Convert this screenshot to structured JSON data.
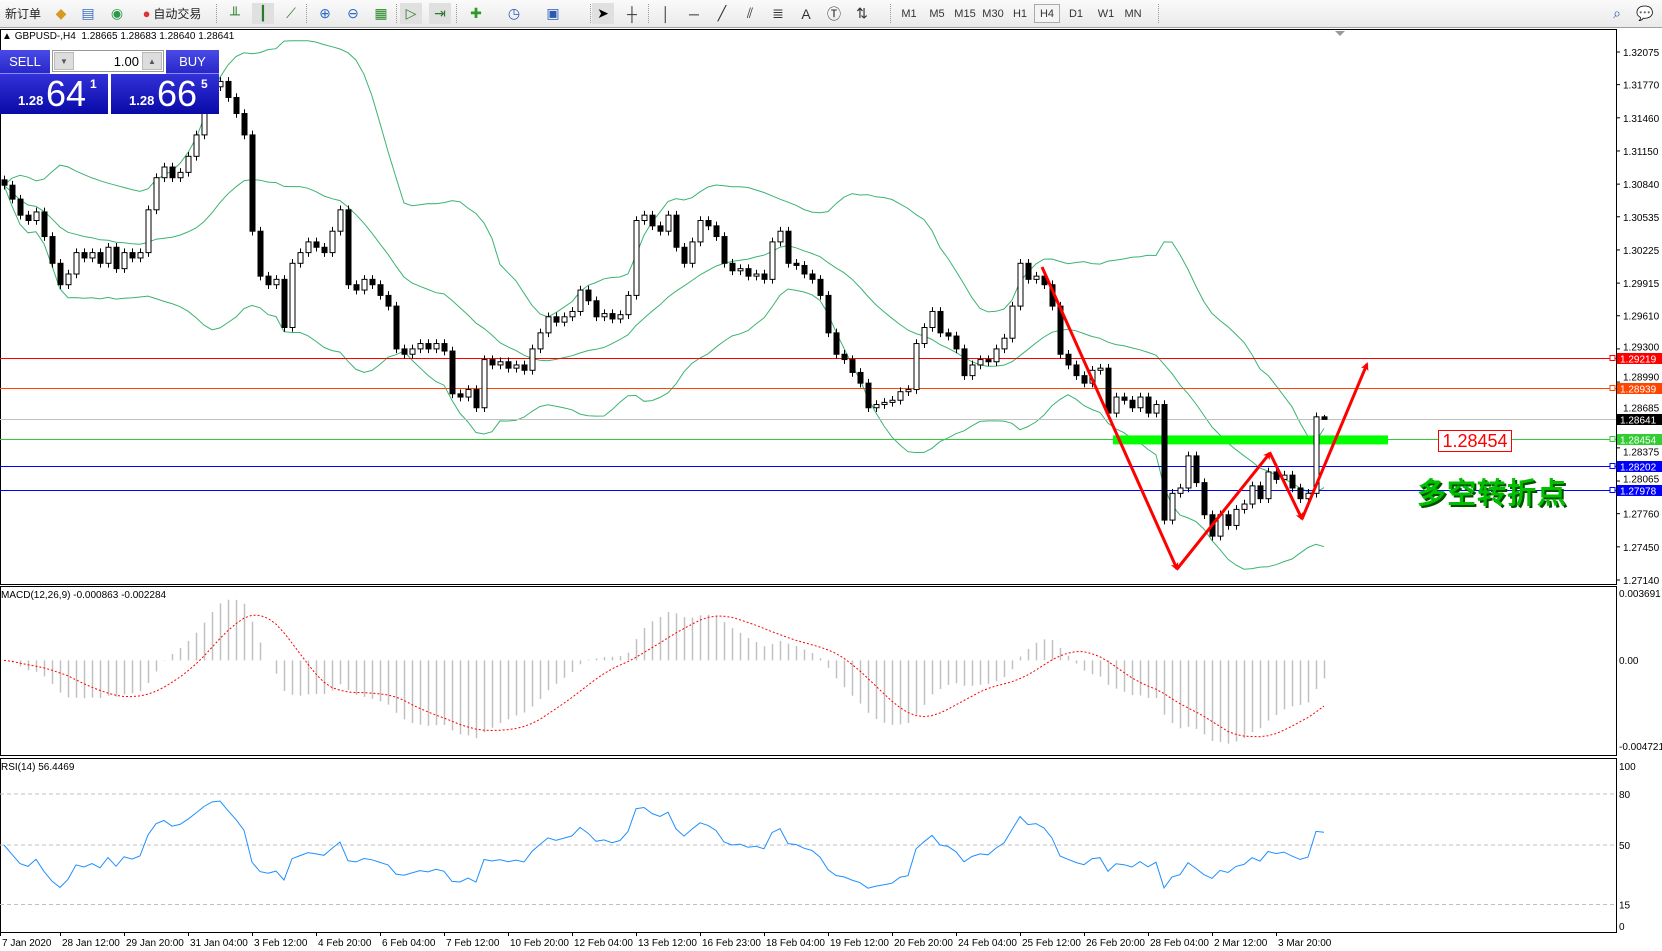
{
  "toolbar": {
    "new_order": "新订单",
    "auto_trading": "自动交易",
    "timeframes": [
      "M1",
      "M5",
      "M15",
      "M30",
      "H1",
      "H4",
      "D1",
      "W1",
      "MN"
    ],
    "active_timeframe": "H4"
  },
  "chart": {
    "symbol": "GBPUSD-,H4",
    "ohlc": [
      "1.28665",
      "1.28683",
      "1.28640",
      "1.28641"
    ]
  },
  "trade_panel": {
    "sell_label": "SELL",
    "buy_label": "BUY",
    "lot": "1.00",
    "sell": {
      "prefix": "1.28",
      "big": "64",
      "sup": "1"
    },
    "buy": {
      "prefix": "1.28",
      "big": "66",
      "sup": "5"
    }
  },
  "price_axis": [
    "1.32075",
    "1.31770",
    "1.31460",
    "1.31150",
    "1.30840",
    "1.30535",
    "1.30225",
    "1.29915",
    "1.29610",
    "1.29300",
    "1.28990",
    "1.28685",
    "1.28375",
    "1.28065",
    "1.27760",
    "1.27450",
    "1.27140"
  ],
  "levels": [
    {
      "price": "1.29219",
      "color": "#ff0000"
    },
    {
      "price": "1.28939",
      "color": "#ff4500"
    },
    {
      "price": "1.28641",
      "color": "#000000",
      "line_color": "#c0c0c0"
    },
    {
      "price": "1.28454",
      "color": "#32cd32"
    },
    {
      "price": "1.28202",
      "color": "#0000ff"
    },
    {
      "price": "1.27978",
      "color": "#0000ff"
    }
  ],
  "annotation": {
    "label": "1.28454",
    "text": "多空转折点",
    "zone_color": "#00ff00",
    "arrow_color": "#ff0000"
  },
  "series": {
    "close": [
      1.3083,
      1.307,
      1.3055,
      1.305,
      1.3058,
      1.3035,
      1.301,
      1.299,
      1.3,
      1.302,
      1.3015,
      1.302,
      1.301,
      1.3025,
      1.3005,
      1.302,
      1.3015,
      1.302,
      1.306,
      1.309,
      1.31,
      1.309,
      1.3095,
      1.311,
      1.313,
      1.3155,
      1.3175,
      1.318,
      1.3165,
      1.315,
      1.313,
      1.304,
      1.2998,
      1.299,
      1.2995,
      1.295,
      1.301,
      1.302,
      1.303,
      1.3025,
      1.302,
      1.304,
      1.306,
      1.299,
      1.2985,
      1.2995,
      1.299,
      1.298,
      1.297,
      1.293,
      1.2925,
      1.293,
      1.2935,
      1.293,
      1.2935,
      1.2928,
      1.2888,
      1.2885,
      1.2892,
      1.2875,
      1.292,
      1.2915,
      1.2918,
      1.2912,
      1.2915,
      1.291,
      1.293,
      1.2945,
      1.296,
      1.2955,
      1.296,
      1.2965,
      1.2985,
      1.2975,
      1.296,
      1.2963,
      1.2958,
      1.2962,
      1.298,
      1.305,
      1.3055,
      1.3045,
      1.304,
      1.3055,
      1.3025,
      1.301,
      1.303,
      1.305,
      1.3045,
      1.3035,
      1.301,
      1.3003,
      1.3005,
      1.2998,
      1.3,
      1.2995,
      1.303,
      1.304,
      1.301,
      1.3008,
      1.3,
      1.2995,
      1.298,
      1.2945,
      1.2925,
      1.292,
      1.2908,
      1.2898,
      1.2875,
      1.2878,
      1.288,
      1.2882,
      1.289,
      1.2892,
      1.2935,
      1.295,
      1.2965,
      1.2945,
      1.2942,
      1.293,
      1.2905,
      1.2915,
      1.292,
      1.2918,
      1.293,
      1.294,
      1.297,
      1.301,
      1.2995,
      1.2998,
      1.299,
      1.297,
      1.2925,
      1.2915,
      1.2905,
      1.2898,
      1.291,
      1.2912,
      1.287,
      1.2885,
      1.2882,
      1.2875,
      1.2885,
      1.287,
      1.2878,
      1.277,
      1.2795,
      1.28,
      1.283,
      1.2805,
      1.2775,
      1.2755,
      1.2775,
      1.2765,
      1.278,
      1.2785,
      1.2802,
      1.279,
      1.2815,
      1.2808,
      1.2812,
      1.28,
      1.279,
      1.2795,
      1.28665,
      1.28641
    ]
  },
  "macd": {
    "label": "MACD(12,26,9) -0.000863 -0.002284",
    "axis": [
      "0.003691",
      "0.00",
      "-0.004721"
    ]
  },
  "rsi": {
    "label": "RSI(14) 56.4469",
    "axis": [
      "100",
      "80",
      "50",
      "15",
      "0"
    ]
  },
  "time_axis": [
    "7 Jan 2020",
    "28 Jan 12:00",
    "29 Jan 20:00",
    "31 Jan 04:00",
    "3 Feb 12:00",
    "4 Feb 20:00",
    "6 Feb 04:00",
    "7 Feb 12:00",
    "10 Feb 20:00",
    "12 Feb 04:00",
    "13 Feb 12:00",
    "16 Feb 23:00",
    "18 Feb 04:00",
    "19 Feb 12:00",
    "20 Feb 20:00",
    "24 Feb 04:00",
    "25 Feb 12:00",
    "26 Feb 20:00",
    "28 Feb 04:00",
    "2 Mar 12:00",
    "3 Mar 20:00"
  ]
}
